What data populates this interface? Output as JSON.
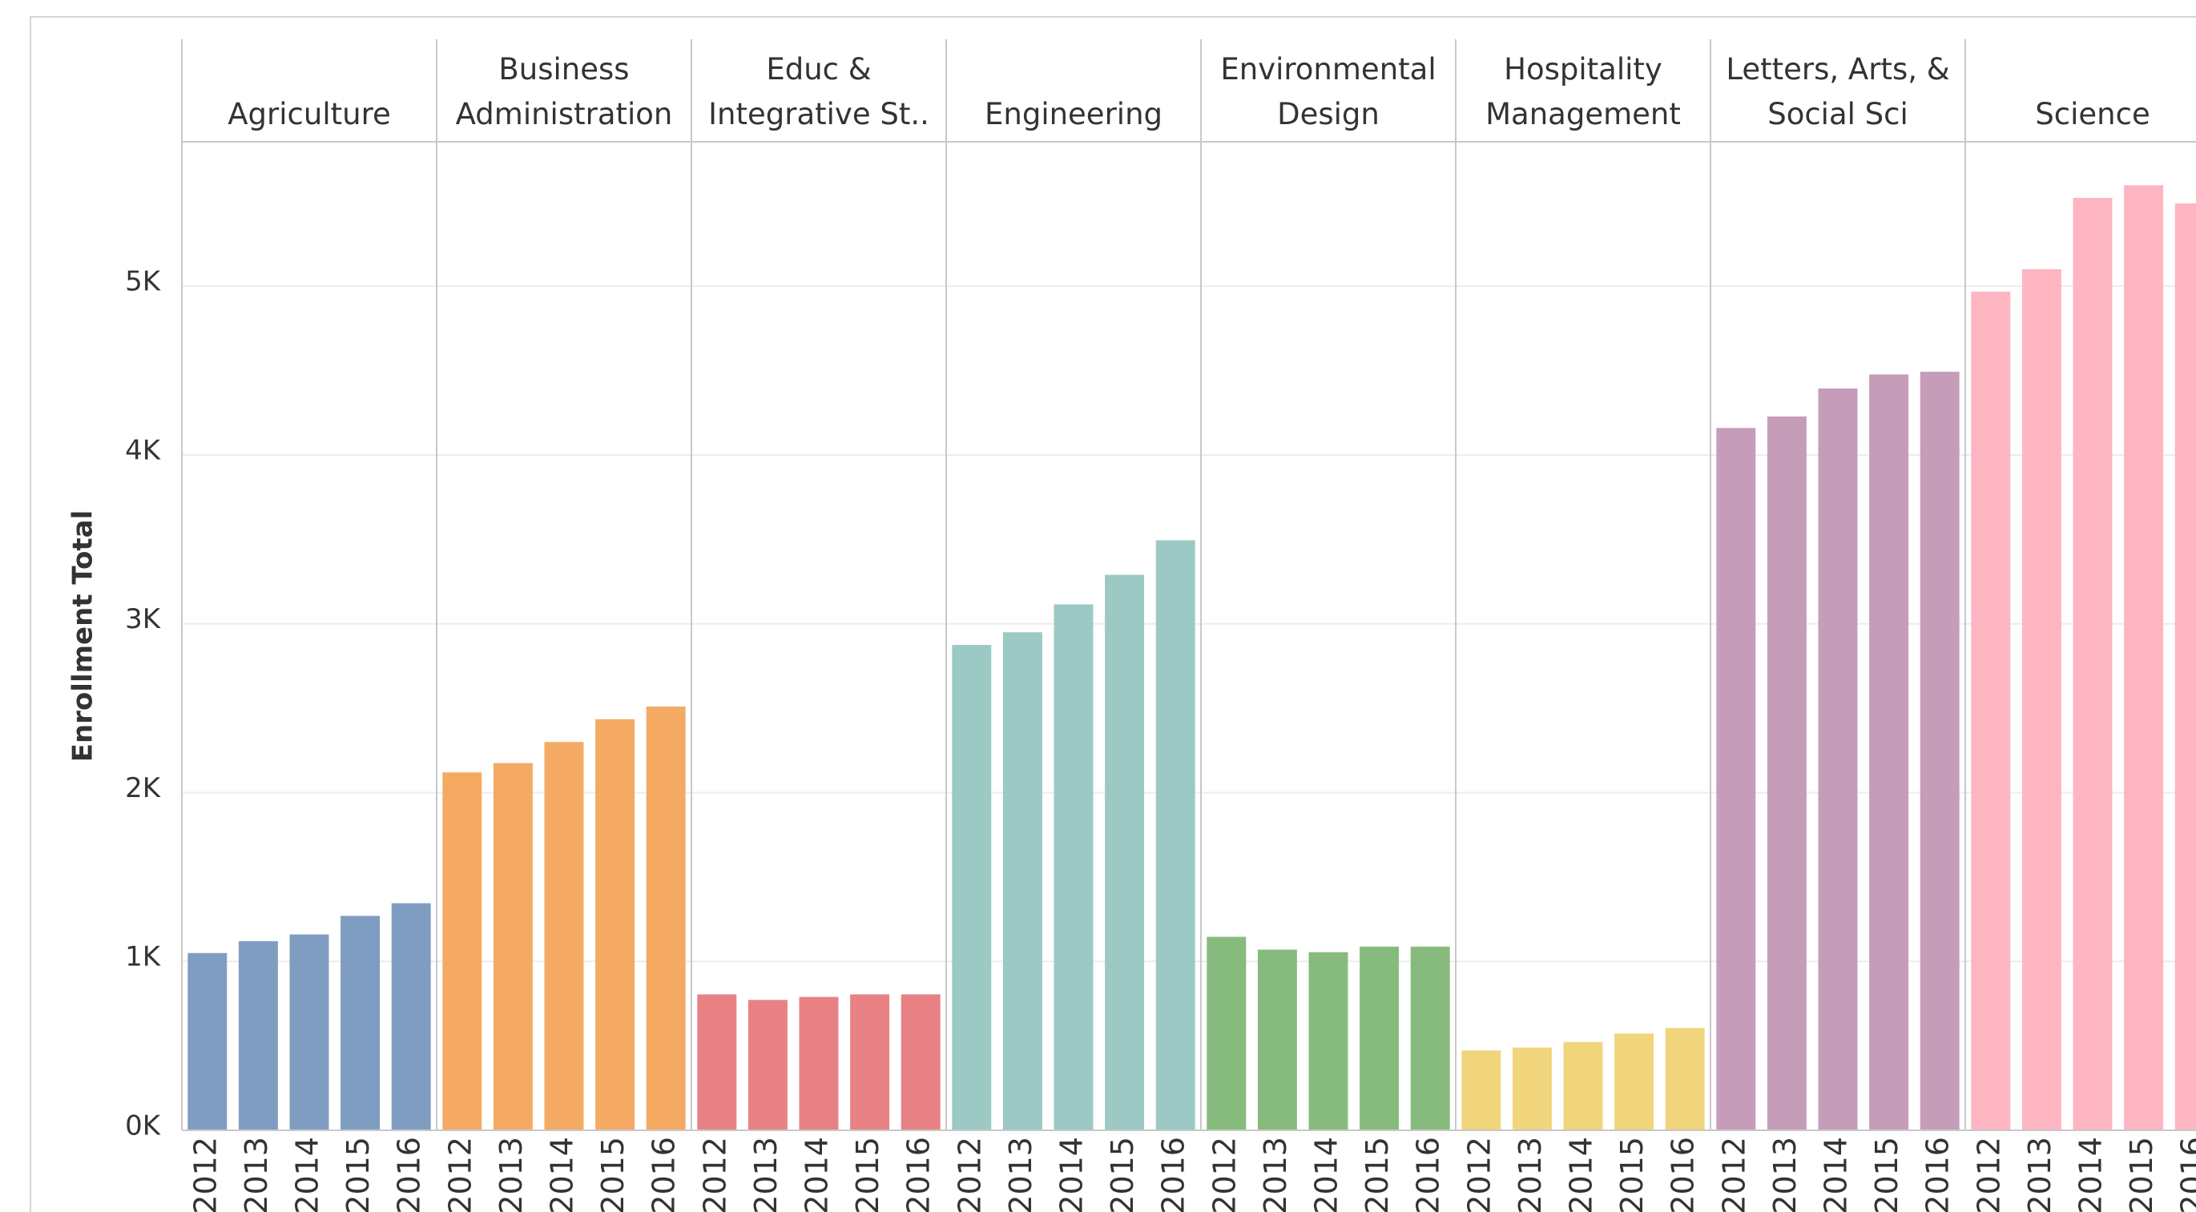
{
  "chart_data": {
    "type": "bar",
    "ylabel": "Enrollment Total",
    "ylim": [
      0,
      5855
    ],
    "yticks": [
      {
        "value": 0,
        "label": "0K"
      },
      {
        "value": 1000,
        "label": "1K"
      },
      {
        "value": 2000,
        "label": "2K"
      },
      {
        "value": 3000,
        "label": "3K"
      },
      {
        "value": 4000,
        "label": "4K"
      },
      {
        "value": 5000,
        "label": "5K"
      }
    ],
    "grid": true,
    "categories": [
      "2012",
      "2013",
      "2014",
      "2015",
      "2016"
    ],
    "series": [
      {
        "name": "Agriculture",
        "color": "#7f9dc1",
        "values": [
          1050,
          1120,
          1160,
          1270,
          1345
        ]
      },
      {
        "name": "Business\nAdministration",
        "color": "#f5aa63",
        "values": [
          2120,
          2175,
          2300,
          2435,
          2510
        ]
      },
      {
        "name": "Educ &\nIntegrative St..",
        "color": "#e88184",
        "values": [
          805,
          772,
          790,
          805,
          805
        ]
      },
      {
        "name": "Engineering",
        "color": "#9cc9c4",
        "values": [
          2875,
          2950,
          3115,
          3290,
          3495
        ]
      },
      {
        "name": "Environmental\nDesign",
        "color": "#87bb7e",
        "values": [
          1146,
          1070,
          1055,
          1088,
          1088
        ]
      },
      {
        "name": "Hospitality\nManagement",
        "color": "#f1d57c",
        "values": [
          473,
          490,
          523,
          573,
          606
        ]
      },
      {
        "name": "Letters, Arts, &\nSocial Sci",
        "color": "#c59db9",
        "values": [
          4160,
          4228,
          4394,
          4477,
          4493
        ]
      },
      {
        "name": "Science",
        "color": "#fdb6c1",
        "values": [
          4967,
          5100,
          5523,
          5598,
          5490
        ]
      }
    ]
  }
}
